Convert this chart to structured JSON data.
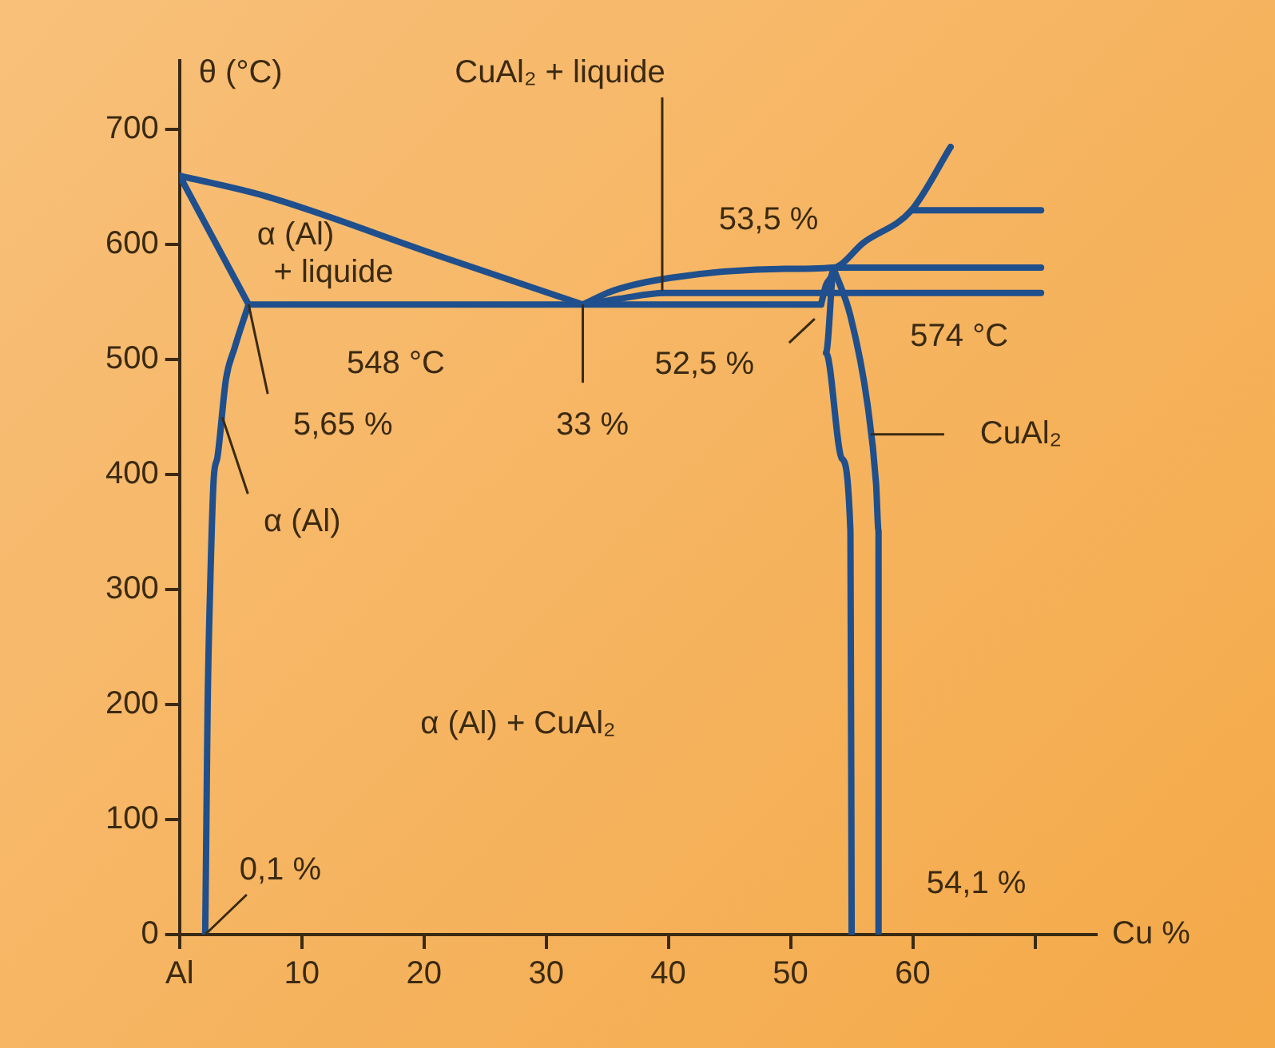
{
  "chart_data": {
    "type": "line",
    "xlabel": "Cu %",
    "ylabel": "θ (°C)",
    "xlim": [
      0,
      75
    ],
    "ylim": [
      0,
      760
    ],
    "xticks": [
      {
        "value": 0,
        "label": "Al"
      },
      10,
      20,
      30,
      40,
      50,
      60,
      {
        "value": 70,
        "label": null
      }
    ],
    "yticks": [
      0,
      100,
      200,
      300,
      400,
      500,
      600,
      700
    ],
    "grid": false,
    "legend": false,
    "marker": "none",
    "line_style": "solid",
    "series": [
      {
        "color": "#1f4f8c",
        "x": [
          0,
          7.1,
          21.3,
          33
        ],
        "values": [
          660,
          642,
          590,
          548
        ]
      },
      {
        "color": "#1f4f8c",
        "x": [
          0,
          5.65
        ],
        "values": [
          660,
          548
        ]
      },
      {
        "color": "#1f4f8c",
        "x": [
          5.65,
          4.5,
          3.8,
          3.1,
          2.8,
          2.5,
          2.3,
          2.2,
          2.1
        ],
        "values": [
          548,
          510,
          483,
          415,
          397,
          300,
          200,
          100,
          0
        ]
      },
      {
        "color": "#1f4f8c",
        "x": [
          5.65,
          52.5
        ],
        "values": [
          548,
          548
        ]
      },
      {
        "color": "#1f4f8c",
        "x": [
          33,
          35.5,
          40.1,
          49.6,
          53.5,
          56,
          59.9,
          63.1
        ],
        "values": [
          548,
          560,
          571,
          579,
          580,
          602,
          630,
          685
        ]
      },
      {
        "color": "#1f4f8c",
        "x": [
          33,
          36,
          39.7,
          70.5
        ],
        "values": [
          548,
          553,
          558,
          558
        ]
      },
      {
        "color": "#1f4f8c",
        "x": [
          53.5,
          70.5
        ],
        "values": [
          580,
          580
        ]
      },
      {
        "color": "#1f4f8c",
        "x": [
          59.9,
          70.5
        ],
        "values": [
          630,
          630
        ]
      },
      {
        "color": "#1f4f8c",
        "x": [
          52.5,
          52.9,
          53.5,
          52.9,
          54.2,
          54.9,
          55
        ],
        "values": [
          548,
          565,
          580,
          506,
          414,
          351,
          0
        ]
      },
      {
        "color": "#1f4f8c",
        "x": [
          53.5,
          54.9,
          56.3,
          57,
          57.2,
          57.2
        ],
        "values": [
          580,
          538,
          461,
          392,
          351,
          0
        ]
      }
    ],
    "annotations": [
      {
        "text": "CuAl₂ + liquide",
        "x": 39.5,
        "y": 560
      },
      "α (Al)",
      "+ liquide",
      "548 °C",
      {
        "text": "5,65 %",
        "x": 5.65,
        "y": 548
      },
      {
        "text": "33 %",
        "x": 33,
        "y": 548
      },
      {
        "text": "52,5 %",
        "x": 52.5,
        "y": 548
      },
      "53,5 %",
      "574 °C",
      {
        "text": "CuAl₂",
        "x": 56.3,
        "y": 435
      },
      {
        "text": "α (Al)",
        "x": 3.5,
        "y": 450
      },
      "α (Al) + CuAl₂",
      {
        "text": "0,1 %",
        "x": 2.1,
        "y": 0
      },
      "54,1 %"
    ]
  }
}
